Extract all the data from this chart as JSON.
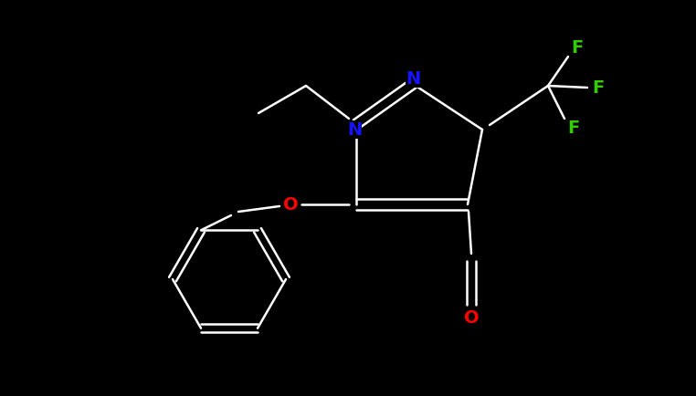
{
  "background_color": "#000000",
  "bond_color": "#ffffff",
  "N_color": "#1414ff",
  "O_color": "#ff0000",
  "F_color": "#33cc00",
  "figsize": [
    7.62,
    4.34
  ],
  "dpi": 100,
  "xlim": [
    0,
    7.62
  ],
  "ylim": [
    0,
    4.34
  ]
}
